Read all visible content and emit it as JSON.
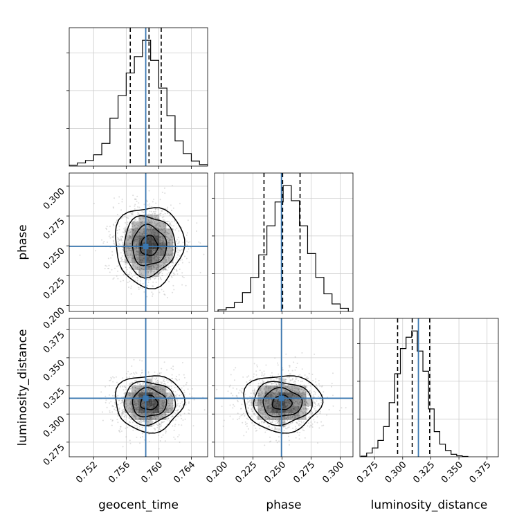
{
  "figure": {
    "type": "corner-plot",
    "parameters": [
      "geocent_time",
      "phase",
      "luminosity_distance"
    ],
    "colors": {
      "truth": "#3a77b0",
      "hist": "#000000",
      "grid": "#cccccc",
      "density": "#000000"
    }
  },
  "chart_data": [
    {
      "type": "bar",
      "panel": "hist-geocent_time",
      "xlabel": "geocent_time",
      "x_range": [
        0.749,
        0.766
      ],
      "ticks": [
        0.752,
        0.756,
        0.76,
        0.764
      ],
      "tick_labels": [
        "0.752",
        "0.756",
        "0.760",
        "0.764"
      ],
      "bin_edges": [
        0.748,
        0.749,
        0.75,
        0.751,
        0.752,
        0.753,
        0.754,
        0.755,
        0.756,
        0.757,
        0.758,
        0.759,
        0.76,
        0.761,
        0.762,
        0.763,
        0.764,
        0.765,
        0.766
      ],
      "counts": [
        0.3,
        0.8,
        2.5,
        4.5,
        9.0,
        18.0,
        38.0,
        56.0,
        74.0,
        87.0,
        100.0,
        84.0,
        62.0,
        40.0,
        20.0,
        10.0,
        4.0,
        1.2
      ],
      "quantiles": [
        0.7565,
        0.7588,
        0.7603
      ],
      "truth": 0.7584,
      "grid": true
    },
    {
      "type": "bar",
      "panel": "hist-phase",
      "xlabel": "phase",
      "x_range": [
        0.192,
        0.311
      ],
      "ticks": [
        0.2,
        0.225,
        0.25,
        0.275,
        0.3
      ],
      "tick_labels": [
        "0.200",
        "0.225",
        "0.250",
        "0.275",
        "0.300"
      ],
      "bin_edges": [
        0.195,
        0.202,
        0.209,
        0.216,
        0.223,
        0.23,
        0.237,
        0.244,
        0.251,
        0.258,
        0.265,
        0.272,
        0.279,
        0.286,
        0.293,
        0.3,
        0.307
      ],
      "counts": [
        1.2,
        3.0,
        7.0,
        15.0,
        27.0,
        45.0,
        68.0,
        87.0,
        100.0,
        88.0,
        68.0,
        46.0,
        27.0,
        14.0,
        6.0,
        2.5
      ],
      "quantiles": [
        0.2345,
        0.2505,
        0.2655
      ],
      "truth": 0.2495,
      "grid": true
    },
    {
      "type": "bar",
      "panel": "hist-luminosity_distance",
      "xlabel": "luminosity_distance",
      "x_range": [
        0.262,
        0.385
      ],
      "ticks": [
        0.275,
        0.3,
        0.325,
        0.35,
        0.375
      ],
      "tick_labels": [
        "0.275",
        "0.300",
        "0.325",
        "0.350",
        "0.375"
      ],
      "bin_edges": [
        0.263,
        0.268,
        0.273,
        0.278,
        0.283,
        0.288,
        0.293,
        0.298,
        0.303,
        0.308,
        0.313,
        0.318,
        0.323,
        0.328,
        0.333,
        0.338,
        0.343,
        0.348,
        0.353,
        0.358
      ],
      "counts": [
        0.5,
        3.0,
        7.0,
        13.0,
        24.0,
        43.0,
        66.0,
        86.0,
        95.0,
        100.0,
        84.0,
        68.0,
        38.0,
        20.0,
        10.0,
        5.0,
        2.0,
        0.8,
        0.3
      ],
      "quantiles": [
        0.2955,
        0.3085,
        0.324
      ],
      "truth": 0.314,
      "grid": true
    },
    {
      "type": "scatter",
      "panel": "2d-geocent_time-phase",
      "x_param": "geocent_time",
      "y_param": "phase",
      "x_range": [
        0.749,
        0.766
      ],
      "y_range": [
        0.195,
        0.311
      ],
      "ylabel": "phase",
      "yticks": [
        0.2,
        0.225,
        0.25,
        0.275,
        0.3
      ],
      "ytick_labels": [
        "0.200",
        "0.225",
        "0.250",
        "0.275",
        "0.300"
      ],
      "center": [
        0.7588,
        0.25
      ],
      "sigma": [
        0.002,
        0.016
      ],
      "contour_levels_sigma": [
        0.5,
        1.0,
        1.5,
        2.0
      ],
      "truth": [
        0.7584,
        0.2495
      ],
      "grid": true
    },
    {
      "type": "scatter",
      "panel": "2d-geocent_time-luminosity_distance",
      "x_param": "geocent_time",
      "y_param": "luminosity_distance",
      "x_range": [
        0.749,
        0.766
      ],
      "y_range": [
        0.262,
        0.385
      ],
      "ylabel": "luminosity_distance",
      "yticks": [
        0.275,
        0.3,
        0.325,
        0.35,
        0.375
      ],
      "ytick_labels": [
        "0.275",
        "0.300",
        "0.325",
        "0.350",
        "0.375"
      ],
      "center": [
        0.7588,
        0.31
      ],
      "sigma": [
        0.002,
        0.012
      ],
      "contour_levels_sigma": [
        0.5,
        1.0,
        1.5,
        2.0
      ],
      "truth": [
        0.7584,
        0.314
      ],
      "grid": true
    },
    {
      "type": "scatter",
      "panel": "2d-phase-luminosity_distance",
      "x_param": "phase",
      "y_param": "luminosity_distance",
      "x_range": [
        0.192,
        0.311
      ],
      "y_range": [
        0.262,
        0.385
      ],
      "center": [
        0.25,
        0.31
      ],
      "sigma": [
        0.016,
        0.012
      ],
      "contour_levels_sigma": [
        0.5,
        1.0,
        1.5,
        2.0
      ],
      "truth": [
        0.2495,
        0.314
      ],
      "grid": true
    }
  ]
}
